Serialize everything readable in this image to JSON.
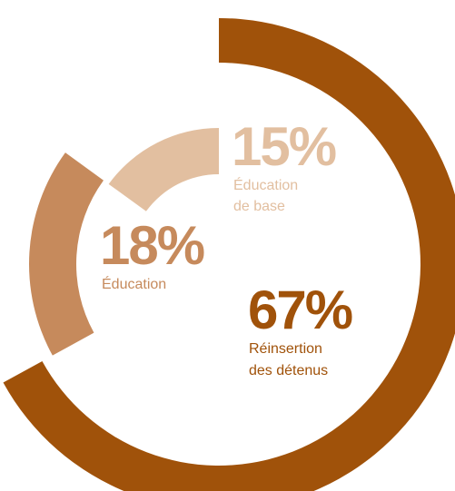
{
  "chart_data": {
    "type": "pie",
    "variant": "radial-arc",
    "series": [
      {
        "value": 67,
        "value_label": "67%",
        "label_lines": [
          "Réinsertion",
          "des détenus"
        ],
        "color": "#A0520A"
      },
      {
        "value": 18,
        "value_label": "18%",
        "label_lines": [
          "Éducation"
        ],
        "color": "#C68A5C"
      },
      {
        "value": 15,
        "value_label": "15%",
        "label_lines": [
          "Éducation",
          "de base"
        ],
        "color": "#E2BFA0"
      }
    ]
  }
}
